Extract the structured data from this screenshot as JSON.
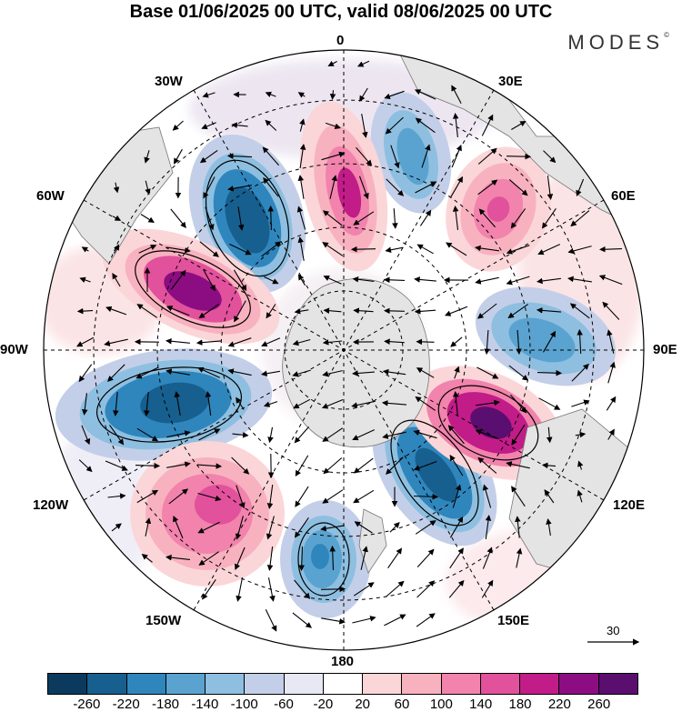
{
  "title": "Base 01/06/2025 00 UTC, valid 08/06/2025 00 UTC",
  "brand": "MODES",
  "brand_mark": "©",
  "longitude_labels": {
    "lon_0": "0",
    "lon_30e": "30E",
    "lon_60e": "60E",
    "lon_90e": "90E",
    "lon_120e": "120E",
    "lon_150e": "150E",
    "lon_180": "180",
    "lon_150w": "150W",
    "lon_120w": "120W",
    "lon_90w": "90W",
    "lon_60w": "60W",
    "lon_30w": "30W"
  },
  "reference_vector": {
    "label": "30"
  },
  "colorbar": {
    "colors": [
      "#0c3a5e",
      "#175f8e",
      "#2f86bd",
      "#5aa3d0",
      "#8ebfe0",
      "#c3cfe8",
      "#e6e8f4",
      "#ffffff",
      "#fbd6d8",
      "#f8b2bf",
      "#f183ac",
      "#e2519c",
      "#c21c88",
      "#8c0d82",
      "#5a0e6f"
    ],
    "ticks": [
      "-260",
      "-220",
      "-180",
      "-140",
      "-100",
      "-60",
      "-20",
      "20",
      "60",
      "100",
      "140",
      "180",
      "220",
      "260"
    ]
  }
}
